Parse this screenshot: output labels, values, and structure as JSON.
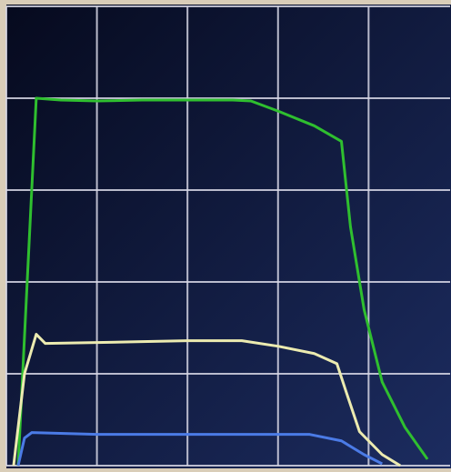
{
  "chart_data": {
    "type": "line",
    "xlim": [
      0,
      4.9
    ],
    "ylim": [
      0,
      5
    ],
    "xticks": [
      0,
      1,
      2,
      3,
      4
    ],
    "yticks": [
      0,
      1,
      2,
      3,
      4,
      5
    ],
    "grid": true,
    "series": [
      {
        "color": "#2fbf2f",
        "x": [
          0.13,
          0.33,
          0.6,
          1.0,
          1.5,
          2.0,
          2.5,
          2.7,
          3.0,
          3.4,
          3.7,
          3.8,
          3.95,
          4.15,
          4.4,
          4.65
        ],
        "values": [
          0,
          4.0,
          3.98,
          3.97,
          3.98,
          3.98,
          3.98,
          3.97,
          3.86,
          3.7,
          3.53,
          2.6,
          1.7,
          0.91,
          0.42,
          0.07
        ]
      },
      {
        "color": "#ecebb0",
        "x": [
          0.08,
          0.2,
          0.33,
          0.43,
          1.0,
          1.5,
          2.0,
          2.6,
          3.0,
          3.4,
          3.65,
          3.75,
          3.9,
          4.15,
          4.35
        ],
        "values": [
          0,
          1.0,
          1.43,
          1.33,
          1.34,
          1.35,
          1.36,
          1.36,
          1.3,
          1.22,
          1.11,
          0.81,
          0.37,
          0.12,
          0
        ]
      },
      {
        "color": "#4b7be6",
        "x": [
          0.13,
          0.2,
          0.28,
          1.0,
          2.0,
          3.0,
          3.35,
          3.7,
          3.95,
          4.15
        ],
        "values": [
          0,
          0.3,
          0.36,
          0.34,
          0.34,
          0.34,
          0.34,
          0.27,
          0.12,
          0.02
        ]
      }
    ]
  }
}
